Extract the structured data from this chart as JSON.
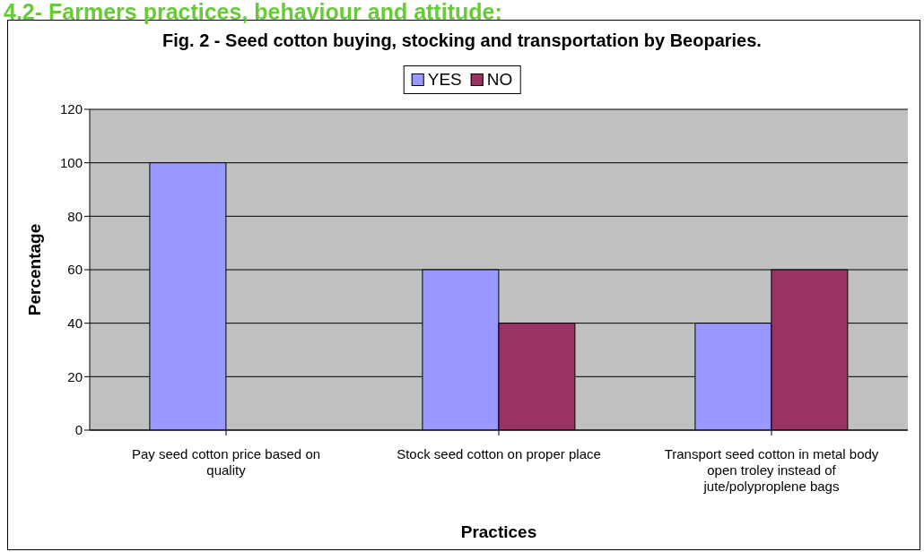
{
  "chart_data": {
    "type": "bar",
    "title": "Fig. 2 - Seed cotton buying, stocking and transportation by Beoparies.",
    "annotations": [
      "4.2- Farmers practices, behaviour and attitude:"
    ],
    "xlabel": "Practices",
    "ylabel": "Percentage",
    "categories": [
      "Pay seed cotton price based on quality",
      "Stock seed cotton on proper place",
      "Transport seed cotton in metal body open troley instead of jute/polyproplene bags"
    ],
    "series": [
      {
        "name": "YES",
        "color": "#9999ff",
        "values": [
          100,
          60,
          40
        ]
      },
      {
        "name": "NO",
        "color": "#993366",
        "values": [
          0,
          40,
          60
        ]
      }
    ],
    "ylim": [
      0,
      120
    ],
    "yticks": [
      0,
      20,
      40,
      60,
      80,
      100,
      120
    ],
    "grid": "y",
    "legend": "top"
  }
}
